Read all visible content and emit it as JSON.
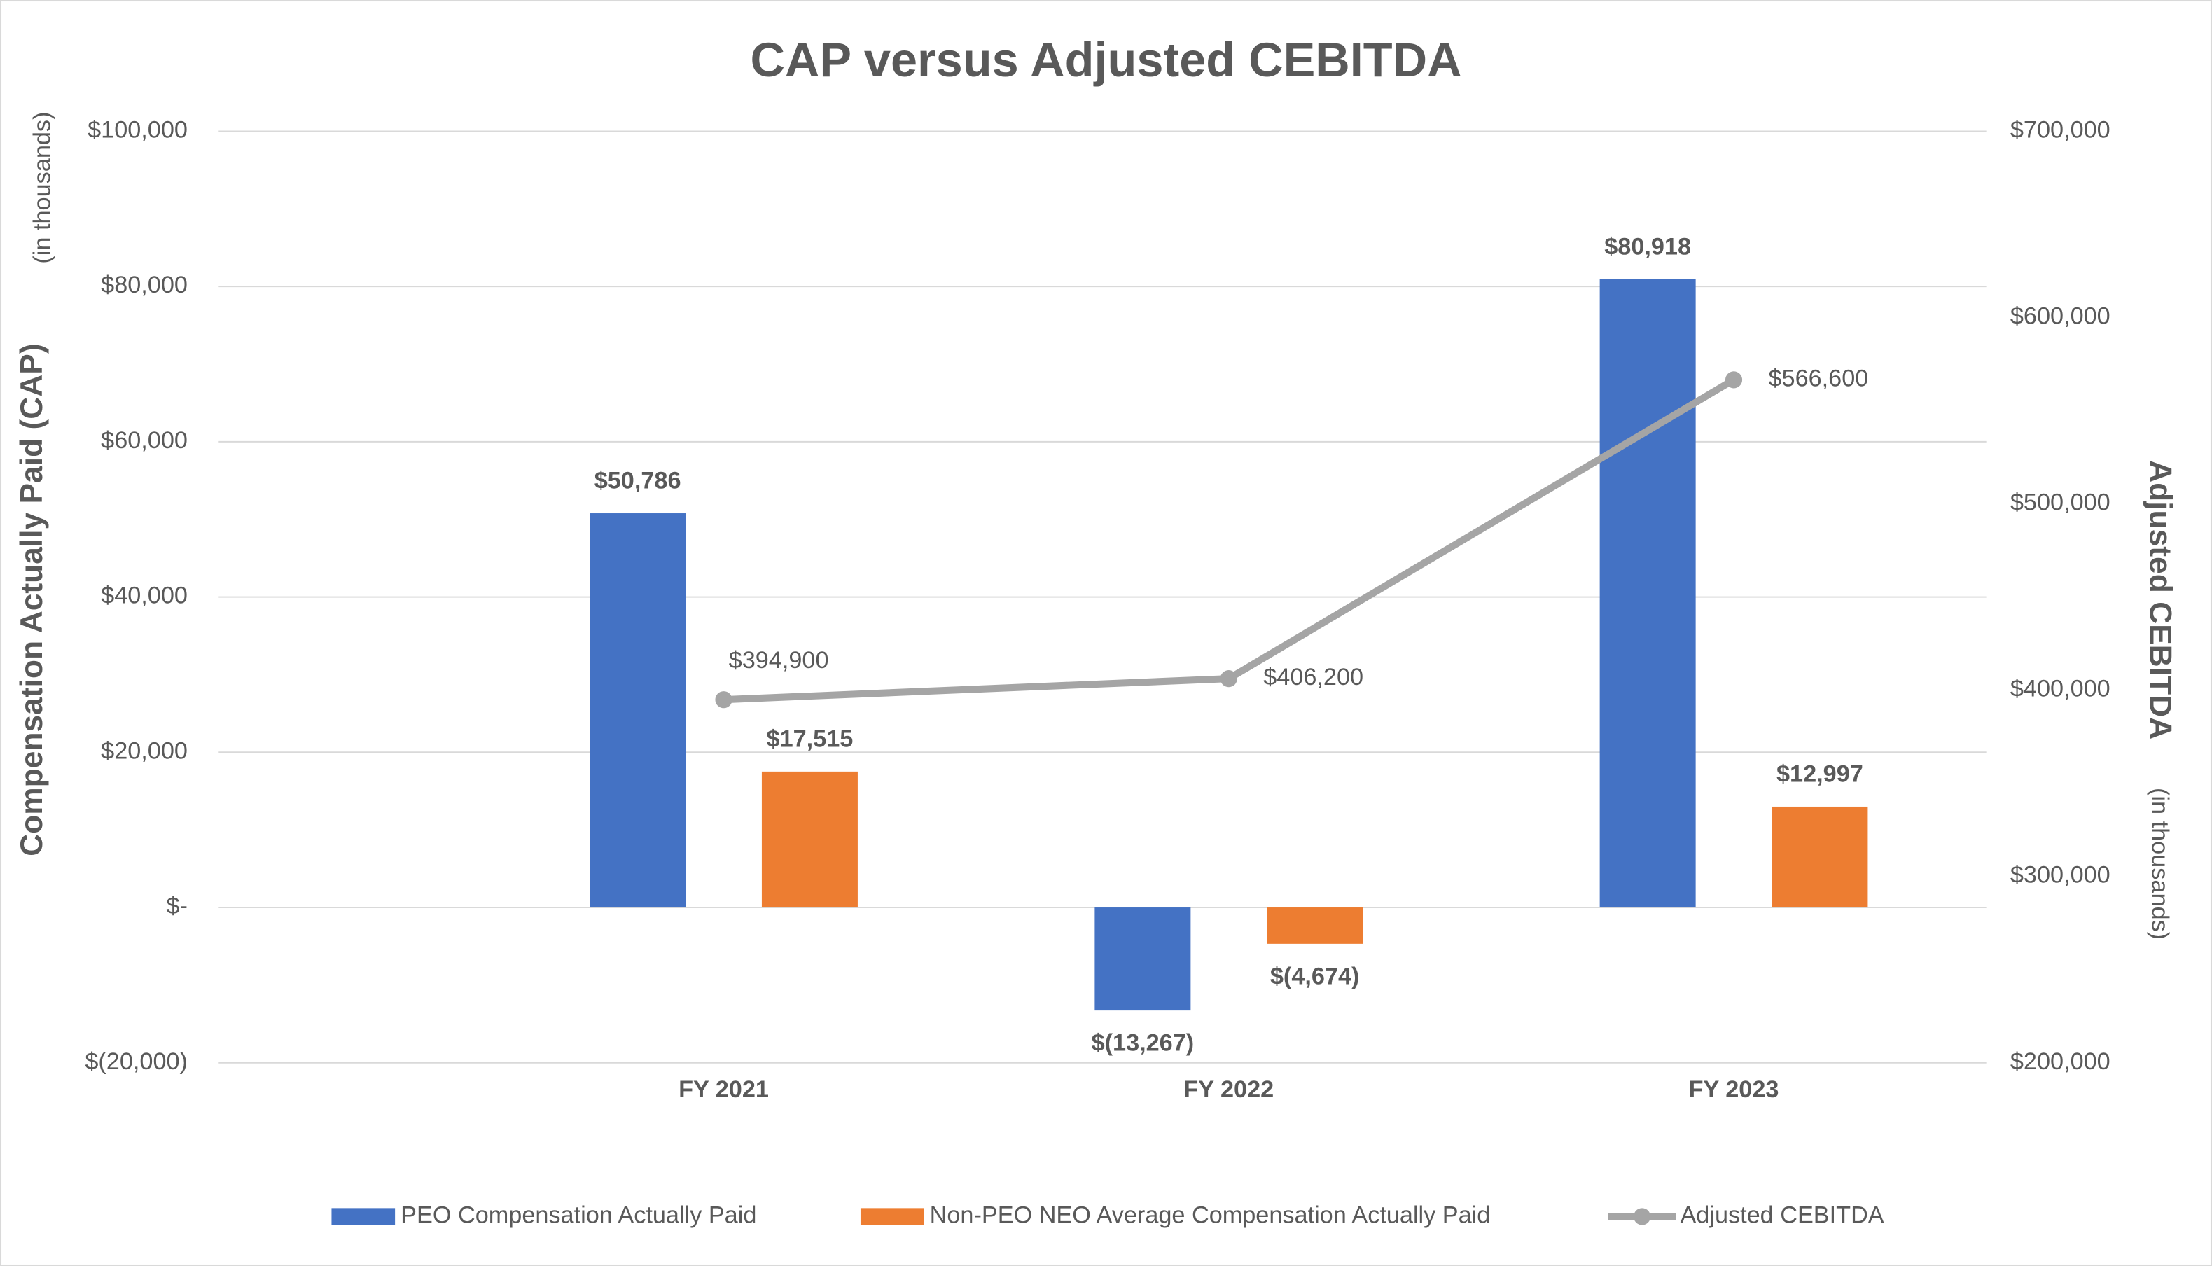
{
  "chart_data": {
    "type": "bar",
    "title": "CAP versus Adjusted CEBITDA",
    "y_label": "Compensation Actually Paid (CAP)",
    "y_label_note": "(in thousands)",
    "y2_label": "Adjusted CEBITDA",
    "y2_label_note": "(in thousands)",
    "categories": [
      "FY 2021",
      "FY 2022",
      "FY 2023"
    ],
    "series": [
      {
        "name": "PEO Compensation Actually Paid",
        "color": "#4472c4",
        "values": [
          50786,
          -13267,
          80918
        ],
        "value_labels": [
          "$50,786",
          "$(13,267)",
          "$80,918"
        ]
      },
      {
        "name": "Non-PEO NEO Average Compensation Actually Paid",
        "color": "#ed7d31",
        "values": [
          17515,
          -4674,
          12997
        ],
        "value_labels": [
          "$17,515",
          "$(4,674)",
          "$12,997"
        ]
      },
      {
        "name": "Adjusted CEBITDA",
        "type": "line",
        "axis": "y2",
        "color": "#a5a5a5",
        "values": [
          394900,
          406200,
          566600
        ],
        "value_labels": [
          "$394,900",
          "$406,200",
          "$566,600"
        ]
      }
    ],
    "ylim": [
      -20000,
      100000
    ],
    "yticks": [
      {
        "value": -20000,
        "label": "$(20,000)"
      },
      {
        "value": 0,
        "label": "$-"
      },
      {
        "value": 20000,
        "label": "$20,000"
      },
      {
        "value": 40000,
        "label": "$40,000"
      },
      {
        "value": 60000,
        "label": "$60,000"
      },
      {
        "value": 80000,
        "label": "$80,000"
      },
      {
        "value": 100000,
        "label": "$100,000"
      }
    ],
    "y2lim": [
      200000,
      700000
    ],
    "y2ticks": [
      {
        "value": 200000,
        "label": "$200,000"
      },
      {
        "value": 300000,
        "label": "$300,000"
      },
      {
        "value": 400000,
        "label": "$400,000"
      },
      {
        "value": 500000,
        "label": "$500,000"
      },
      {
        "value": 600000,
        "label": "$600,000"
      },
      {
        "value": 700000,
        "label": "$700,000"
      }
    ],
    "grid": true,
    "legend": "bottom"
  }
}
